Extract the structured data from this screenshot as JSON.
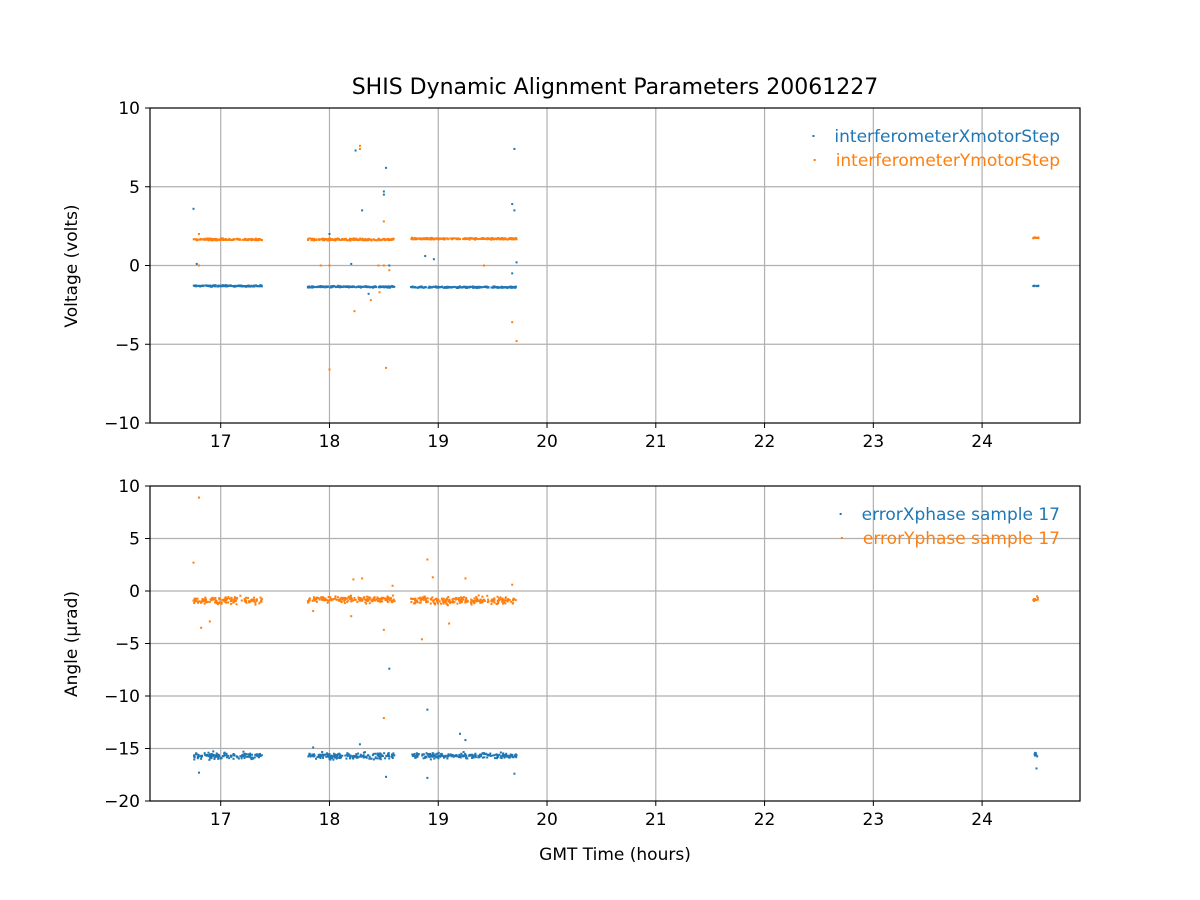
{
  "title": "SHIS Dynamic Alignment Parameters 20061227",
  "colors": {
    "series1": "#1f77b4",
    "series2": "#ff7f0e"
  },
  "chart_data": [
    {
      "type": "scatter",
      "panel": "top",
      "title": "SHIS Dynamic Alignment Parameters 20061227",
      "xlabel": "",
      "ylabel": "Voltage (volts)",
      "xlim": [
        16.35,
        24.9
      ],
      "ylim": [
        -10,
        10
      ],
      "xticks": [
        17,
        18,
        19,
        20,
        21,
        22,
        23,
        24
      ],
      "yticks": [
        -10,
        -5,
        0,
        5,
        10
      ],
      "grid": true,
      "legend_position": "top-right",
      "series": [
        {
          "name": "interferometerXmotorStep",
          "color": "#1f77b4",
          "segments": [
            {
              "x_start": 16.75,
              "x_end": 17.38,
              "y": -1.3,
              "spread": 0.08
            },
            {
              "x_start": 17.8,
              "x_end": 18.6,
              "y": -1.35,
              "spread": 0.08
            },
            {
              "x_start": 18.75,
              "x_end": 19.72,
              "y": -1.38,
              "spread": 0.08
            },
            {
              "x_start": 24.47,
              "x_end": 24.52,
              "y": -1.3,
              "spread": 0.06
            }
          ],
          "outliers": [
            [
              16.75,
              3.6
            ],
            [
              16.78,
              0.1
            ],
            [
              18.24,
              7.3
            ],
            [
              18.3,
              3.5
            ],
            [
              18.52,
              6.2
            ],
            [
              18.5,
              4.5
            ],
            [
              18.5,
              4.7
            ],
            [
              18.36,
              -1.8
            ],
            [
              18.2,
              0.1
            ],
            [
              18.55,
              0.0
            ],
            [
              19.7,
              7.4
            ],
            [
              19.68,
              3.9
            ],
            [
              19.7,
              3.5
            ],
            [
              19.68,
              -0.5
            ],
            [
              18.88,
              0.6
            ],
            [
              18.96,
              0.4
            ],
            [
              19.72,
              0.2
            ],
            [
              18.0,
              2.0
            ]
          ]
        },
        {
          "name": "interferometerYmotorStep",
          "color": "#ff7f0e",
          "segments": [
            {
              "x_start": 16.75,
              "x_end": 17.38,
              "y": 1.65,
              "spread": 0.1
            },
            {
              "x_start": 17.8,
              "x_end": 18.6,
              "y": 1.65,
              "spread": 0.1
            },
            {
              "x_start": 18.75,
              "x_end": 19.72,
              "y": 1.7,
              "spread": 0.1
            },
            {
              "x_start": 24.47,
              "x_end": 24.52,
              "y": 1.75,
              "spread": 0.08
            }
          ],
          "outliers": [
            [
              16.8,
              2.0
            ],
            [
              16.8,
              0.0
            ],
            [
              18.28,
              7.6
            ],
            [
              18.28,
              7.4
            ],
            [
              18.0,
              -6.6
            ],
            [
              18.52,
              -6.5
            ],
            [
              18.23,
              -2.9
            ],
            [
              18.5,
              2.8
            ],
            [
              18.45,
              0.0
            ],
            [
              18.5,
              0.0
            ],
            [
              18.38,
              -2.2
            ],
            [
              18.46,
              -1.7
            ],
            [
              18.55,
              -0.3
            ],
            [
              19.68,
              -3.6
            ],
            [
              19.72,
              -4.8
            ],
            [
              19.42,
              0.0
            ],
            [
              18.0,
              0.0
            ],
            [
              17.92,
              0.0
            ]
          ]
        }
      ]
    },
    {
      "type": "scatter",
      "panel": "bottom",
      "title": "",
      "xlabel": "GMT Time (hours)",
      "ylabel": "Angle (μrad)",
      "xlim": [
        16.35,
        24.9
      ],
      "ylim": [
        -20,
        10
      ],
      "xticks": [
        17,
        18,
        19,
        20,
        21,
        22,
        23,
        24
      ],
      "yticks": [
        -20,
        -15,
        -10,
        -5,
        0,
        5,
        10
      ],
      "grid": true,
      "legend_position": "top-right",
      "series": [
        {
          "name": "errorXphase sample 17",
          "color": "#1f77b4",
          "segments": [
            {
              "x_start": 16.75,
              "x_end": 17.38,
              "y": -15.7,
              "spread": 0.5
            },
            {
              "x_start": 17.8,
              "x_end": 18.6,
              "y": -15.7,
              "spread": 0.5
            },
            {
              "x_start": 18.75,
              "x_end": 19.72,
              "y": -15.7,
              "spread": 0.45
            },
            {
              "x_start": 24.47,
              "x_end": 24.52,
              "y": -15.6,
              "spread": 0.4
            }
          ],
          "outliers": [
            [
              16.8,
              -17.3
            ],
            [
              18.55,
              -7.4
            ],
            [
              18.9,
              -11.3
            ],
            [
              19.2,
              -13.6
            ],
            [
              19.25,
              -14.2
            ],
            [
              18.28,
              -14.6
            ],
            [
              18.52,
              -17.7
            ],
            [
              18.9,
              -17.8
            ],
            [
              19.7,
              -17.4
            ],
            [
              24.5,
              -16.9
            ],
            [
              17.85,
              -14.9
            ]
          ]
        },
        {
          "name": "errorYphase sample 17",
          "color": "#ff7f0e",
          "segments": [
            {
              "x_start": 16.75,
              "x_end": 17.38,
              "y": -0.9,
              "spread": 0.55
            },
            {
              "x_start": 17.8,
              "x_end": 18.6,
              "y": -0.8,
              "spread": 0.55
            },
            {
              "x_start": 18.75,
              "x_end": 19.72,
              "y": -0.9,
              "spread": 0.6
            },
            {
              "x_start": 24.47,
              "x_end": 24.52,
              "y": -0.8,
              "spread": 0.35
            }
          ],
          "outliers": [
            [
              16.8,
              8.9
            ],
            [
              16.75,
              2.7
            ],
            [
              16.82,
              -3.5
            ],
            [
              16.9,
              -2.9
            ],
            [
              18.5,
              -12.1
            ],
            [
              18.5,
              -3.7
            ],
            [
              18.85,
              -4.6
            ],
            [
              18.9,
              3.0
            ],
            [
              18.95,
              1.3
            ],
            [
              18.22,
              1.1
            ],
            [
              18.3,
              1.2
            ],
            [
              18.2,
              -2.4
            ],
            [
              19.1,
              -3.1
            ],
            [
              19.25,
              1.2
            ],
            [
              19.68,
              0.6
            ],
            [
              17.85,
              -1.9
            ],
            [
              18.58,
              0.5
            ]
          ]
        }
      ]
    }
  ]
}
